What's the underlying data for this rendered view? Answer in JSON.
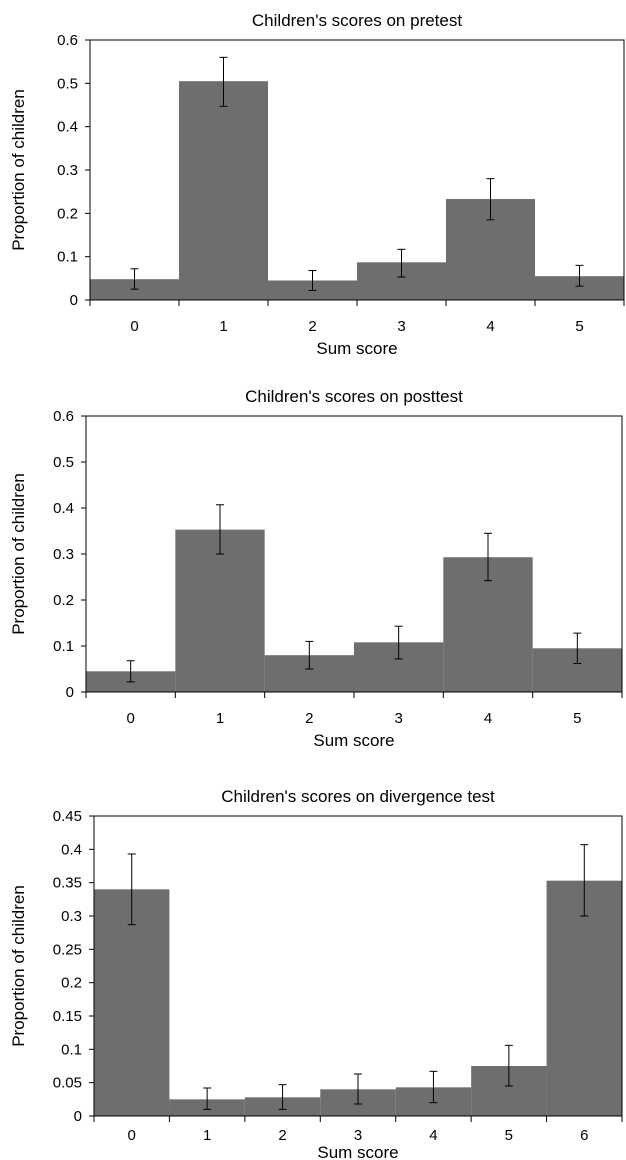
{
  "colors": {
    "bar": "#6e6e6e",
    "axis": "#000000",
    "errorbar": "#000000"
  },
  "chart_data": [
    {
      "type": "bar",
      "title": "Children's scores on pretest",
      "xlabel": "Sum score",
      "ylabel": "Proportion of children",
      "categories": [
        "0",
        "1",
        "2",
        "3",
        "4",
        "5"
      ],
      "values": [
        0.048,
        0.505,
        0.045,
        0.087,
        0.233,
        0.055
      ],
      "error_low": [
        0.025,
        0.447,
        0.022,
        0.053,
        0.185,
        0.032
      ],
      "error_high": [
        0.072,
        0.56,
        0.068,
        0.117,
        0.28,
        0.08
      ],
      "ylim": [
        0,
        0.6
      ],
      "yticks": [
        "0",
        "0.1",
        "0.2",
        "0.3",
        "0.4",
        "0.5",
        "0.6"
      ],
      "grid": false,
      "legend": "none"
    },
    {
      "type": "bar",
      "title": "Children's scores on posttest",
      "xlabel": "Sum score",
      "ylabel": "Proportion of children",
      "categories": [
        "0",
        "1",
        "2",
        "3",
        "4",
        "5"
      ],
      "values": [
        0.045,
        0.353,
        0.08,
        0.108,
        0.293,
        0.095
      ],
      "error_low": [
        0.022,
        0.3,
        0.05,
        0.072,
        0.242,
        0.062
      ],
      "error_high": [
        0.068,
        0.407,
        0.11,
        0.143,
        0.345,
        0.128
      ],
      "ylim": [
        0,
        0.6
      ],
      "yticks": [
        "0",
        "0.1",
        "0.2",
        "0.3",
        "0.4",
        "0.5",
        "0.6"
      ],
      "grid": false,
      "legend": "none"
    },
    {
      "type": "bar",
      "title": "Children's scores on divergence test",
      "xlabel": "Sum score",
      "ylabel": "Proportion of children",
      "categories": [
        "0",
        "1",
        "2",
        "3",
        "4",
        "5",
        "6"
      ],
      "values": [
        0.34,
        0.025,
        0.028,
        0.04,
        0.043,
        0.075,
        0.353
      ],
      "error_low": [
        0.287,
        0.01,
        0.01,
        0.018,
        0.02,
        0.045,
        0.3
      ],
      "error_high": [
        0.393,
        0.042,
        0.047,
        0.063,
        0.067,
        0.106,
        0.407
      ],
      "ylim": [
        0,
        0.45
      ],
      "yticks": [
        "0",
        "0.05",
        "0.1",
        "0.15",
        "0.2",
        "0.25",
        "0.3",
        "0.35",
        "0.4",
        "0.45"
      ],
      "grid": false,
      "legend": "none"
    }
  ]
}
